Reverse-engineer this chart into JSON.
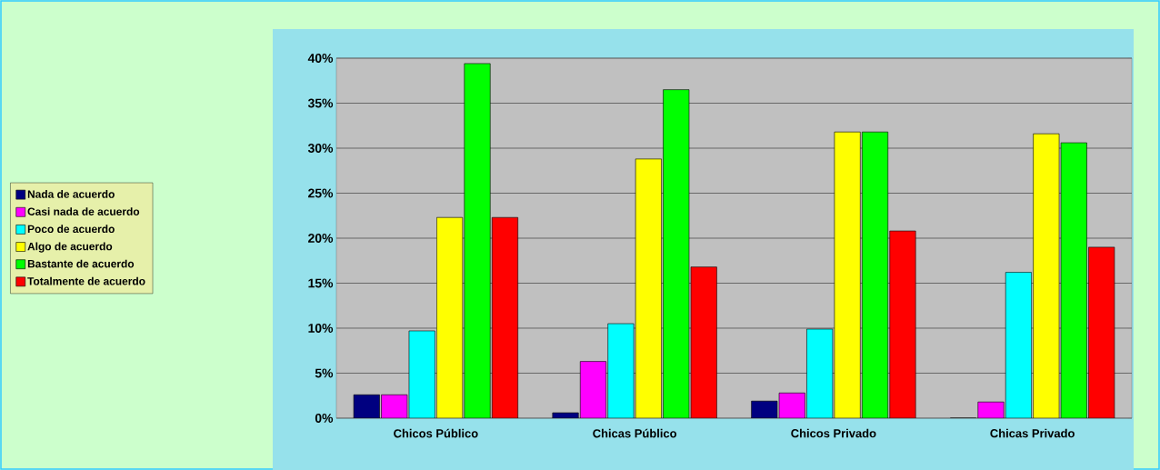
{
  "chart_data": {
    "type": "bar",
    "categories": [
      "Chicos Público",
      "Chicas Público",
      "Chicos Privado",
      "Chicas Privado"
    ],
    "series": [
      {
        "name": "Nada de acuerdo",
        "color": "#000080",
        "values": [
          2.6,
          0.6,
          1.9,
          0
        ]
      },
      {
        "name": "Casi nada de acuerdo",
        "color": "#ff00ff",
        "values": [
          2.6,
          6.3,
          2.8,
          1.8
        ]
      },
      {
        "name": "Poco de acuerdo",
        "color": "#00ffff",
        "values": [
          9.7,
          10.5,
          9.9,
          16.2
        ]
      },
      {
        "name": "Algo de acuerdo",
        "color": "#ffff00",
        "values": [
          22.3,
          28.8,
          31.8,
          31.6
        ]
      },
      {
        "name": "Bastante de acuerdo",
        "color": "#00ff00",
        "values": [
          39.4,
          36.5,
          31.8,
          30.6
        ]
      },
      {
        "name": "Totalmente de acuerdo",
        "color": "#ff0000",
        "values": [
          22.3,
          16.8,
          20.8,
          19.0
        ]
      }
    ],
    "ylim": [
      0,
      40
    ],
    "yticks": [
      {
        "value": 0,
        "label": "0%"
      },
      {
        "value": 5,
        "label": "5%"
      },
      {
        "value": 10,
        "label": "10%"
      },
      {
        "value": 15,
        "label": "15%"
      },
      {
        "value": 20,
        "label": "20%"
      },
      {
        "value": 25,
        "label": "25%"
      },
      {
        "value": 30,
        "label": "30%"
      },
      {
        "value": 35,
        "label": "35%"
      },
      {
        "value": 40,
        "label": "40%"
      }
    ],
    "grid": "y",
    "legend": "left"
  }
}
